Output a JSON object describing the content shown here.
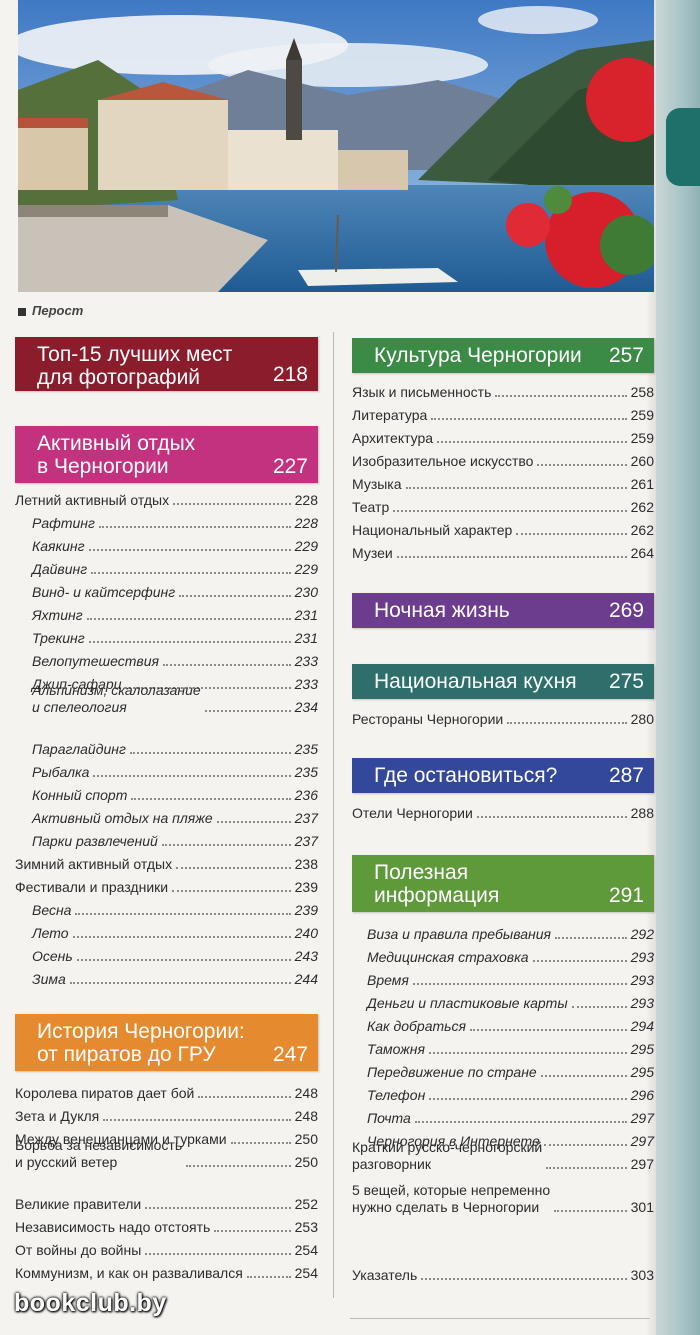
{
  "caption": "Перост",
  "left_sections": [
    {
      "id": "top15",
      "title": "Топ-15 лучших мест\nдля фотографий",
      "page": "218",
      "color": "#8a1c2c"
    },
    {
      "id": "active",
      "title": "Активный отдых\nв Черногории",
      "page": "227",
      "color": "#c2327f",
      "entries": [
        {
          "label": "Летний активный отдых",
          "page": "228",
          "sub": false
        },
        {
          "label": "Рафтинг",
          "page": "228",
          "sub": true
        },
        {
          "label": "Каякинг",
          "page": "229",
          "sub": true
        },
        {
          "label": "Дайвинг",
          "page": "229",
          "sub": true
        },
        {
          "label": "Винд- и кайтсерфинг",
          "page": "230",
          "sub": true
        },
        {
          "label": "Яхтинг",
          "page": "231",
          "sub": true
        },
        {
          "label": "Трекинг",
          "page": "231",
          "sub": true
        },
        {
          "label": "Велопутешествия",
          "page": "233",
          "sub": true
        },
        {
          "label": "Джип-сафари",
          "page": "233",
          "sub": true
        },
        {
          "label": "Альпинизм, скалолазание\nи спелеология",
          "page": "234",
          "sub": true
        },
        {
          "label": "Параглайдинг",
          "page": "235",
          "sub": true
        },
        {
          "label": "Рыбалка",
          "page": "235",
          "sub": true
        },
        {
          "label": "Конный спорт",
          "page": "236",
          "sub": true
        },
        {
          "label": "Активный отдых на пляже",
          "page": "237",
          "sub": true
        },
        {
          "label": "Парки развлечений",
          "page": "237",
          "sub": true
        },
        {
          "label": "Зимний активный отдых",
          "page": "238",
          "sub": false
        },
        {
          "label": "Фестивали и праздники",
          "page": "239",
          "sub": false
        },
        {
          "label": "Весна",
          "page": "239",
          "sub": true
        },
        {
          "label": "Лето",
          "page": "240",
          "sub": true
        },
        {
          "label": "Осень",
          "page": "243",
          "sub": true
        },
        {
          "label": "Зима",
          "page": "244",
          "sub": true
        }
      ]
    },
    {
      "id": "history",
      "title": "История Черногории:\nот пиратов до ГРУ",
      "page": "247",
      "color": "#e58a2e",
      "entries": [
        {
          "label": "Королева пиратов дает бой",
          "page": "248",
          "sub": false
        },
        {
          "label": "Зета и Дукля",
          "page": "248",
          "sub": false
        },
        {
          "label": "Между венецианцами и турками",
          "page": "250",
          "sub": false
        },
        {
          "label": "Борьба за независимость\nи русский ветер",
          "page": "250",
          "sub": false
        },
        {
          "label": "Великие правители",
          "page": "252",
          "sub": false
        },
        {
          "label": "Независимость надо отстоять",
          "page": "253",
          "sub": false
        },
        {
          "label": "От войны до войны",
          "page": "254",
          "sub": false
        },
        {
          "label": "Коммунизм, и как он разваливался",
          "page": "254",
          "sub": false
        }
      ]
    }
  ],
  "right_sections": [
    {
      "id": "culture",
      "title": "Культура Черногории",
      "page": "257",
      "color": "#3b8a45",
      "entries": [
        {
          "label": "Язык и письменность",
          "page": "258",
          "sub": false
        },
        {
          "label": "Литература",
          "page": "259",
          "sub": false
        },
        {
          "label": "Архитектура",
          "page": "259",
          "sub": false
        },
        {
          "label": "Изобразительное искусство",
          "page": "260",
          "sub": false
        },
        {
          "label": "Музыка",
          "page": "261",
          "sub": false
        },
        {
          "label": "Театр",
          "page": "262",
          "sub": false
        },
        {
          "label": "Национальный характер",
          "page": "262",
          "sub": false
        },
        {
          "label": "Музеи",
          "page": "264",
          "sub": false
        }
      ]
    },
    {
      "id": "night",
      "title": "Ночная жизнь",
      "page": "269",
      "color": "#6c3d8e"
    },
    {
      "id": "cuisine",
      "title": "Национальная кухня",
      "page": "275",
      "color": "#2e6f6c",
      "entries": [
        {
          "label": "Рестораны Черногории",
          "page": "280",
          "sub": false
        }
      ]
    },
    {
      "id": "stay",
      "title": "Где остановиться?",
      "page": "287",
      "color": "#33489a",
      "entries": [
        {
          "label": "Отели Черногории",
          "page": "288",
          "sub": false
        }
      ]
    },
    {
      "id": "useful",
      "title": "Полезная\nинформация",
      "page": "291",
      "color": "#5f9a3a",
      "entries": [
        {
          "label": "Виза и правила пребывания",
          "page": "292",
          "sub": true
        },
        {
          "label": "Медицинская страховка",
          "page": "293",
          "sub": true
        },
        {
          "label": "Время",
          "page": "293",
          "sub": true
        },
        {
          "label": "Деньги и пластиковые карты",
          "page": "293",
          "sub": true
        },
        {
          "label": "Как добраться",
          "page": "294",
          "sub": true
        },
        {
          "label": "Таможня",
          "page": "295",
          "sub": true
        },
        {
          "label": "Передвижение по стране",
          "page": "295",
          "sub": true
        },
        {
          "label": "Телефон",
          "page": "296",
          "sub": true
        },
        {
          "label": "Почта",
          "page": "297",
          "sub": true
        },
        {
          "label": "Черногория в Интернете",
          "page": "297",
          "sub": true
        },
        {
          "label": "Краткий русско-черногорский\nразговорник",
          "page": "297",
          "sub": false
        },
        {
          "label": "5 вещей, которые непременно\nнужно сделать в Черногории",
          "page": "301",
          "sub": false
        }
      ]
    },
    {
      "id": "index",
      "entries": [
        {
          "label": "Указатель",
          "page": "303",
          "sub": false
        }
      ]
    }
  ],
  "watermark": "bookclub.by"
}
